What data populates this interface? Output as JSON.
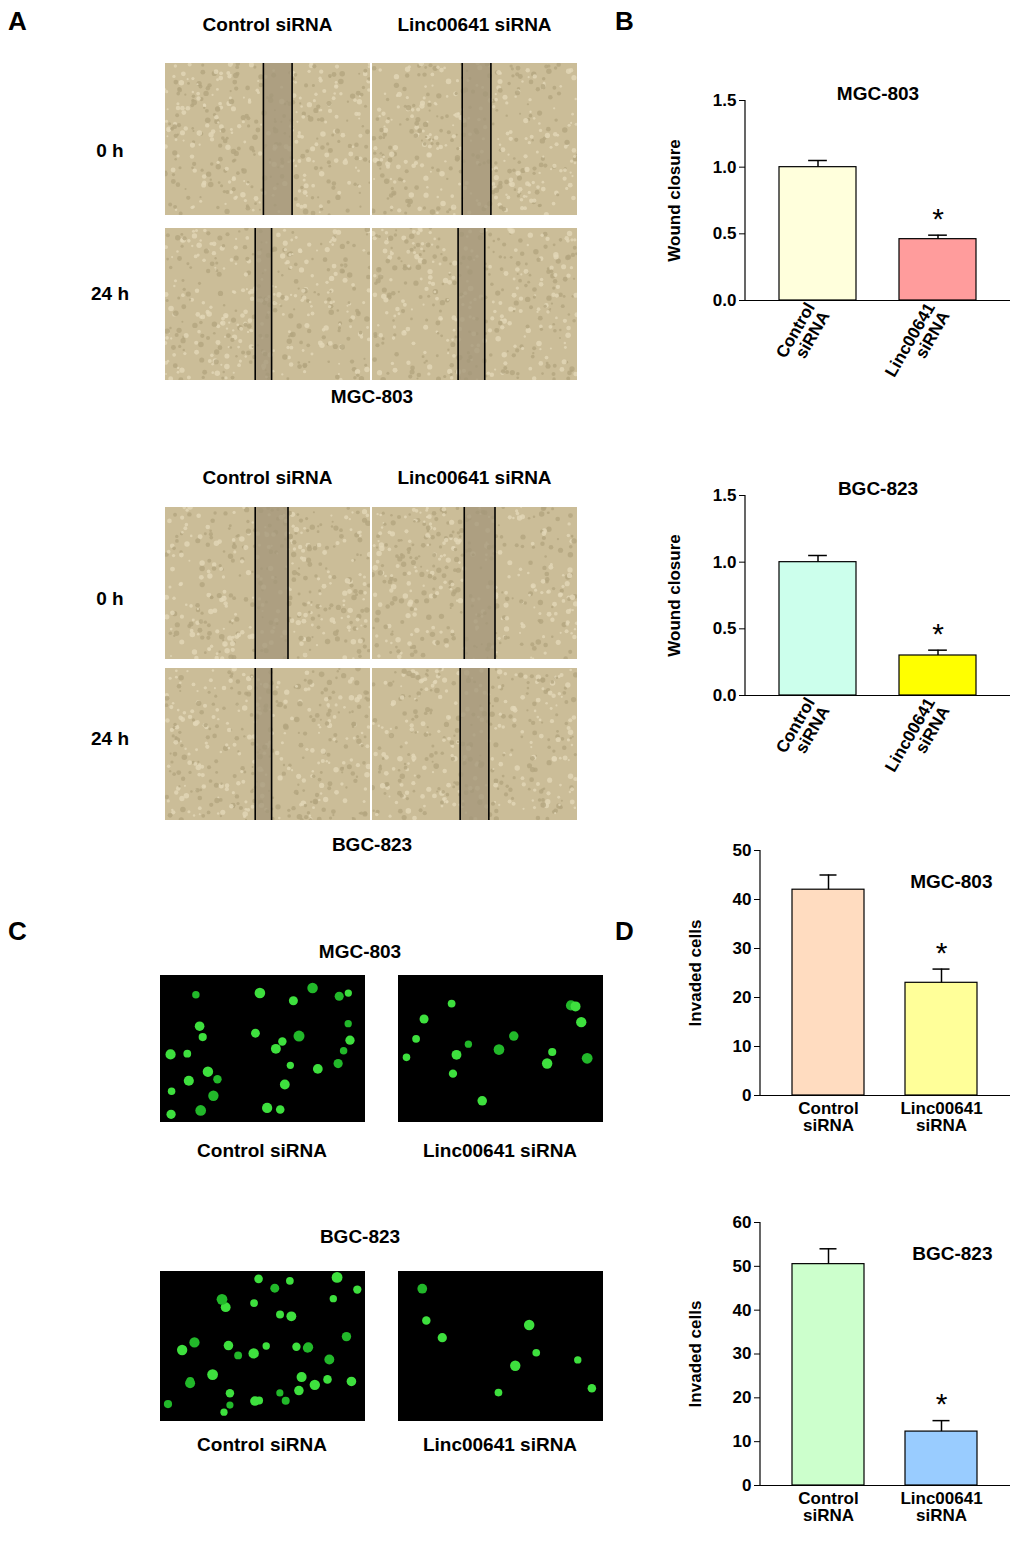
{
  "chart_data": [
    {
      "panel_label": "B",
      "type": "bar",
      "title": "MGC-803",
      "y_label": "Wound closure",
      "categories": [
        "Control siRNA",
        "Linc00641 siRNA"
      ],
      "values": [
        1.0,
        0.46
      ],
      "errors": [
        0.05,
        0.03
      ],
      "colors": [
        "#ffffdc",
        "#ff9c9c"
      ],
      "ylim": [
        0,
        1.5
      ],
      "yticks": [
        {
          "value": 0,
          "label": "0.0"
        },
        {
          "value": 0.5,
          "label": "0.5"
        },
        {
          "value": 1,
          "label": "1.0"
        },
        {
          "value": 1.5,
          "label": "1.5"
        }
      ],
      "annotations": [
        {
          "category": "Linc00641 siRNA",
          "text": "*"
        }
      ]
    },
    {
      "type": "bar",
      "title": "BGC-823",
      "y_label": "Wound closure",
      "categories": [
        "Control siRNA",
        "Linc00641 siRNA"
      ],
      "values": [
        1.0,
        0.3
      ],
      "errors": [
        0.05,
        0.04
      ],
      "colors": [
        "#ccffec",
        "#ffff00"
      ],
      "ylim": [
        0,
        1.5
      ],
      "yticks": [
        {
          "value": 0,
          "label": "0.0"
        },
        {
          "value": 0.5,
          "label": "0.5"
        },
        {
          "value": 1,
          "label": "1.0"
        },
        {
          "value": 1.5,
          "label": "1.5"
        }
      ],
      "annotations": [
        {
          "category": "Linc00641 siRNA",
          "text": "*"
        }
      ]
    },
    {
      "panel_label": "D",
      "type": "bar",
      "title": "MGC-803",
      "y_label": "Invaded cells",
      "categories": [
        "Control siRNA",
        "Linc00641 siRNA"
      ],
      "values": [
        42,
        23
      ],
      "errors": [
        3,
        2.8
      ],
      "colors": [
        "#ffdcc0",
        "#ffff99"
      ],
      "ylim": [
        0,
        50
      ],
      "yticks": [
        0,
        10,
        20,
        30,
        40,
        50
      ],
      "annotations": [
        {
          "category": "Linc00641 siRNA",
          "text": "*"
        }
      ]
    },
    {
      "type": "bar",
      "title": "BGC-823",
      "y_label": "Invaded cells",
      "categories": [
        "Control siRNA",
        "Linc00641 siRNA"
      ],
      "values": [
        50.5,
        12.3
      ],
      "errors": [
        3.5,
        2.5
      ],
      "colors": [
        "#ccffcc",
        "#99ccff"
      ],
      "ylim": [
        0,
        60
      ],
      "yticks": [
        0,
        10,
        20,
        30,
        40,
        50,
        60
      ],
      "annotations": [
        {
          "category": "Linc00641 siRNA",
          "text": "*"
        }
      ]
    }
  ],
  "image_panels": [
    {
      "panel_label": "A",
      "blocks": [
        {
          "cell_line": "MGC-803",
          "columns": [
            "Control siRNA",
            "Linc00641 siRNA"
          ],
          "rows": [
            "0 h",
            "24 h"
          ]
        },
        {
          "cell_line": "BGC-823",
          "columns": [
            "Control siRNA",
            "Linc00641 siRNA"
          ],
          "rows": [
            "0 h",
            "24 h"
          ]
        }
      ]
    },
    {
      "panel_label": "C",
      "blocks": [
        {
          "cell_line": "MGC-803",
          "columns": [
            "Control siRNA",
            "Linc00641 siRNA"
          ]
        },
        {
          "cell_line": "BGC-823",
          "columns": [
            "Control siRNA",
            "Linc00641 siRNA"
          ]
        }
      ]
    }
  ]
}
